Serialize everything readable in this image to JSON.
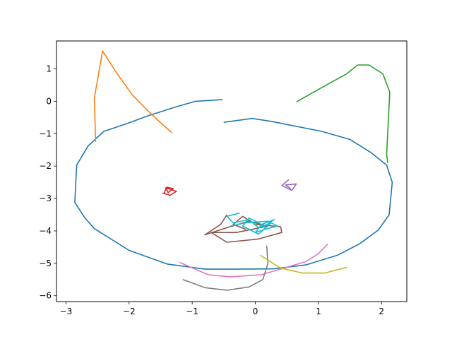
{
  "chart_data": {
    "type": "line",
    "title": "",
    "xlabel": "",
    "ylabel": "",
    "xlim": [
      -3.15,
      2.4
    ],
    "ylim": [
      -6.18,
      1.86
    ],
    "xticks": [
      -3,
      -2,
      -1,
      0,
      1,
      2
    ],
    "yticks": [
      1,
      0,
      -1,
      -2,
      -3,
      -4,
      -5,
      -6
    ],
    "xtick_labels": [
      "−3",
      "−2",
      "−1",
      "0",
      "1",
      "2"
    ],
    "ytick_labels": [
      "1",
      "0",
      "−1",
      "−2",
      "−3",
      "−4",
      "−5",
      "−6"
    ],
    "grid": false,
    "series": [
      {
        "color": "#1f77b4",
        "points": [
          [
            -0.52,
            0.05
          ],
          [
            -0.95,
            0.0
          ],
          [
            -1.3,
            -0.2
          ],
          [
            -1.7,
            -0.45
          ],
          [
            -2.05,
            -0.7
          ],
          [
            -2.4,
            -0.93
          ],
          [
            -2.65,
            -1.38
          ],
          [
            -2.83,
            -1.97
          ],
          [
            -2.86,
            -3.12
          ],
          [
            -2.7,
            -3.6
          ],
          [
            -2.55,
            -3.93
          ],
          [
            -2.0,
            -4.6
          ],
          [
            -1.4,
            -5.02
          ],
          [
            -0.8,
            -5.18
          ],
          [
            -0.25,
            -5.18
          ],
          [
            0.3,
            -5.17
          ],
          [
            0.8,
            -5.05
          ],
          [
            1.3,
            -4.75
          ],
          [
            1.65,
            -4.4
          ],
          [
            1.95,
            -3.97
          ],
          [
            2.12,
            -3.5
          ],
          [
            2.17,
            -2.5
          ],
          [
            2.08,
            -1.97
          ],
          [
            1.83,
            -1.58
          ],
          [
            1.5,
            -1.18
          ],
          [
            1.05,
            -0.93
          ],
          [
            0.25,
            -0.62
          ],
          [
            -0.05,
            -0.53
          ],
          [
            -0.5,
            -0.65
          ]
        ]
      },
      {
        "color": "#ff7f0e",
        "points": [
          [
            -1.32,
            -0.97
          ],
          [
            -1.48,
            -0.7
          ],
          [
            -1.7,
            -0.3
          ],
          [
            -1.95,
            0.2
          ],
          [
            -2.2,
            0.88
          ],
          [
            -2.42,
            1.55
          ],
          [
            -2.55,
            0.1
          ],
          [
            -2.53,
            -1.25
          ]
        ]
      },
      {
        "color": "#2ca02c",
        "points": [
          [
            0.65,
            -0.02
          ],
          [
            1.05,
            0.42
          ],
          [
            1.45,
            0.85
          ],
          [
            1.62,
            1.12
          ],
          [
            1.8,
            1.12
          ],
          [
            2.02,
            0.85
          ],
          [
            2.13,
            0.28
          ],
          [
            2.08,
            -1.65
          ],
          [
            2.1,
            -1.9
          ]
        ]
      },
      {
        "color": "#d62728",
        "points": [
          [
            -1.45,
            -2.85
          ],
          [
            -1.4,
            -2.65
          ],
          [
            -1.3,
            -2.7
          ],
          [
            -1.38,
            -2.82
          ],
          [
            -1.42,
            -2.67
          ],
          [
            -1.25,
            -2.78
          ],
          [
            -1.35,
            -2.9
          ],
          [
            -1.47,
            -2.83
          ]
        ]
      },
      {
        "color": "#9467bd",
        "points": [
          [
            0.53,
            -2.42
          ],
          [
            0.42,
            -2.6
          ],
          [
            0.58,
            -2.75
          ],
          [
            0.65,
            -2.55
          ],
          [
            0.48,
            -2.58
          ],
          [
            0.56,
            -2.7
          ]
        ]
      },
      {
        "color": "#8c564b",
        "points": [
          [
            -0.45,
            -3.5
          ],
          [
            -0.55,
            -3.8
          ],
          [
            -0.8,
            -4.12
          ],
          [
            -0.45,
            -3.9
          ],
          [
            -0.1,
            -3.7
          ],
          [
            0.2,
            -3.85
          ],
          [
            -0.3,
            -4.05
          ],
          [
            -0.7,
            -4.05
          ],
          [
            -0.45,
            -4.35
          ],
          [
            0.05,
            -4.25
          ],
          [
            0.42,
            -4.05
          ],
          [
            0.4,
            -3.87
          ],
          [
            0.0,
            -3.8
          ],
          [
            -0.2,
            -3.55
          ],
          [
            -0.35,
            -3.8
          ],
          [
            -0.15,
            -3.95
          ]
        ]
      },
      {
        "color": "#e377c2",
        "points": [
          [
            -1.2,
            -4.97
          ],
          [
            -0.75,
            -5.35
          ],
          [
            -0.4,
            -5.42
          ],
          [
            0.1,
            -5.35
          ],
          [
            0.45,
            -5.15
          ],
          [
            0.8,
            -4.95
          ],
          [
            1.0,
            -4.7
          ],
          [
            1.15,
            -4.4
          ]
        ]
      },
      {
        "color": "#7f7f7f",
        "points": [
          [
            -1.15,
            -5.5
          ],
          [
            -0.8,
            -5.75
          ],
          [
            -0.45,
            -5.83
          ],
          [
            -0.1,
            -5.73
          ],
          [
            0.12,
            -5.5
          ],
          [
            0.2,
            -5.0
          ],
          [
            0.18,
            -4.45
          ]
        ]
      },
      {
        "color": "#bcbd22",
        "points": [
          [
            0.08,
            -4.75
          ],
          [
            0.4,
            -5.15
          ],
          [
            0.75,
            -5.3
          ],
          [
            1.1,
            -5.3
          ],
          [
            1.45,
            -5.12
          ]
        ]
      },
      {
        "color": "#17becf",
        "points": [
          [
            -0.25,
            -3.45
          ],
          [
            -0.45,
            -3.55
          ],
          [
            -0.35,
            -3.75
          ],
          [
            -0.1,
            -3.65
          ],
          [
            0.05,
            -3.9
          ],
          [
            0.25,
            -3.75
          ],
          [
            0.05,
            -4.1
          ],
          [
            -0.2,
            -3.85
          ],
          [
            -0.1,
            -3.6
          ],
          [
            0.15,
            -3.85
          ],
          [
            0.3,
            -3.65
          ],
          [
            0.1,
            -3.8
          ],
          [
            0.0,
            -4.05
          ],
          [
            0.15,
            -3.95
          ],
          [
            0.35,
            -3.85
          ],
          [
            0.2,
            -3.7
          ],
          [
            -0.15,
            -3.75
          ],
          [
            -0.4,
            -3.85
          ]
        ]
      }
    ]
  }
}
